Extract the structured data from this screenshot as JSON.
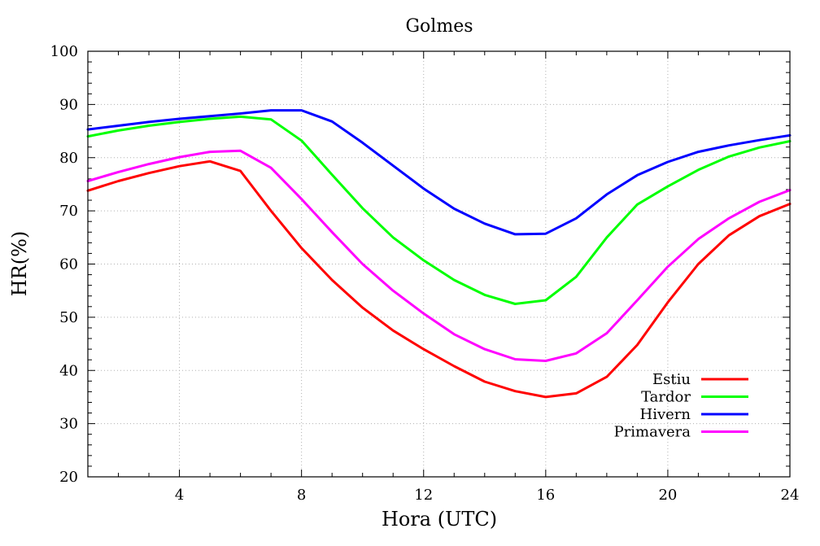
{
  "chart_data": {
    "type": "line",
    "title": "Golmes",
    "xlabel": "Hora (UTC)",
    "ylabel": "HR(%)",
    "xlim": [
      1,
      24
    ],
    "ylim": [
      20,
      100
    ],
    "x_ticks": [
      4,
      8,
      12,
      16,
      20,
      24
    ],
    "y_ticks": [
      20,
      30,
      40,
      50,
      60,
      70,
      80,
      90,
      100
    ],
    "grid": true,
    "legend_position": "bottom-right",
    "x": [
      1,
      2,
      3,
      4,
      5,
      6,
      7,
      8,
      9,
      10,
      11,
      12,
      13,
      14,
      15,
      16,
      17,
      18,
      19,
      20,
      21,
      22,
      23,
      24
    ],
    "series": [
      {
        "name": "Estiu",
        "color": "#ff0000",
        "values": [
          73.8,
          75.6,
          77.1,
          78.4,
          79.3,
          77.5,
          70.0,
          63.0,
          57.0,
          51.8,
          47.5,
          44.0,
          40.8,
          37.9,
          36.1,
          35.0,
          35.7,
          38.8,
          44.8,
          52.8,
          60.0,
          65.4,
          69.0,
          71.3
        ]
      },
      {
        "name": "Tardor",
        "color": "#00ff00",
        "values": [
          84.0,
          85.1,
          86.0,
          86.7,
          87.3,
          87.7,
          87.2,
          83.2,
          76.8,
          70.5,
          65.0,
          60.7,
          57.0,
          54.2,
          52.5,
          53.2,
          57.6,
          65.0,
          71.2,
          74.6,
          77.7,
          80.2,
          81.9,
          83.1
        ]
      },
      {
        "name": "Hivern",
        "color": "#0000ff",
        "values": [
          85.3,
          86.0,
          86.7,
          87.3,
          87.8,
          88.3,
          88.9,
          88.9,
          86.8,
          82.8,
          78.5,
          74.2,
          70.4,
          67.6,
          65.6,
          65.7,
          68.6,
          73.1,
          76.7,
          79.2,
          81.1,
          82.3,
          83.3,
          84.2
        ]
      },
      {
        "name": "Primavera",
        "color": "#ff00ff",
        "values": [
          75.6,
          77.3,
          78.8,
          80.1,
          81.1,
          81.3,
          78.1,
          72.2,
          66.0,
          60.0,
          55.0,
          50.7,
          46.8,
          44.0,
          42.1,
          41.8,
          43.2,
          47.0,
          53.2,
          59.5,
          64.7,
          68.6,
          71.7,
          73.9
        ]
      }
    ]
  }
}
